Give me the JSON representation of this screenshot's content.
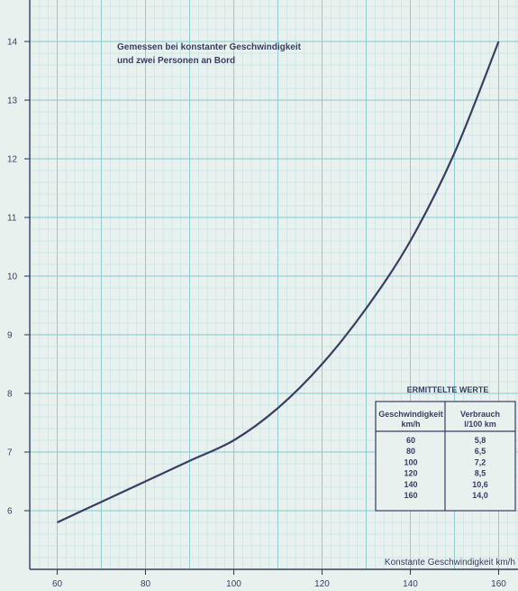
{
  "chart_data": {
    "type": "line",
    "title": "",
    "annotation_lines": [
      "Gemessen bei konstanter Geschwindigkeit",
      "und zwei Personen an Bord"
    ],
    "xlabel": "Konstante Geschwindigkeit km/h",
    "ylabel": "",
    "xlim": [
      54,
      163
    ],
    "ylim": [
      5.0,
      14.6
    ],
    "x_ticks": [
      "60",
      "80",
      "100",
      "120",
      "140",
      "160"
    ],
    "y_ticks": [
      "6",
      "7",
      "8",
      "9",
      "10",
      "11",
      "12",
      "13",
      "14"
    ],
    "grid": true,
    "series": [
      {
        "x": [
          60,
          70,
          80,
          90,
          100,
          110,
          120,
          130,
          140,
          150,
          160
        ],
        "y": [
          5.8,
          6.15,
          6.5,
          6.85,
          7.2,
          7.75,
          8.5,
          9.45,
          10.6,
          12.1,
          14.0
        ]
      }
    ],
    "colors": {
      "background": "#e9f1ee",
      "grid_minor": "#b8e0e2",
      "grid_major": "#86c9cf",
      "ink": "#3a3e63"
    }
  },
  "table": {
    "title": "ERMITTELTE WERTE",
    "col1_header": [
      "Geschwindigkeit",
      "km/h"
    ],
    "col2_header": [
      "Verbrauch",
      "l/100 km"
    ],
    "rows": [
      [
        "60",
        "5,8"
      ],
      [
        "80",
        "6,5"
      ],
      [
        "100",
        "7,2"
      ],
      [
        "120",
        "8,5"
      ],
      [
        "140",
        "10,6"
      ],
      [
        "160",
        "14,0"
      ]
    ]
  }
}
